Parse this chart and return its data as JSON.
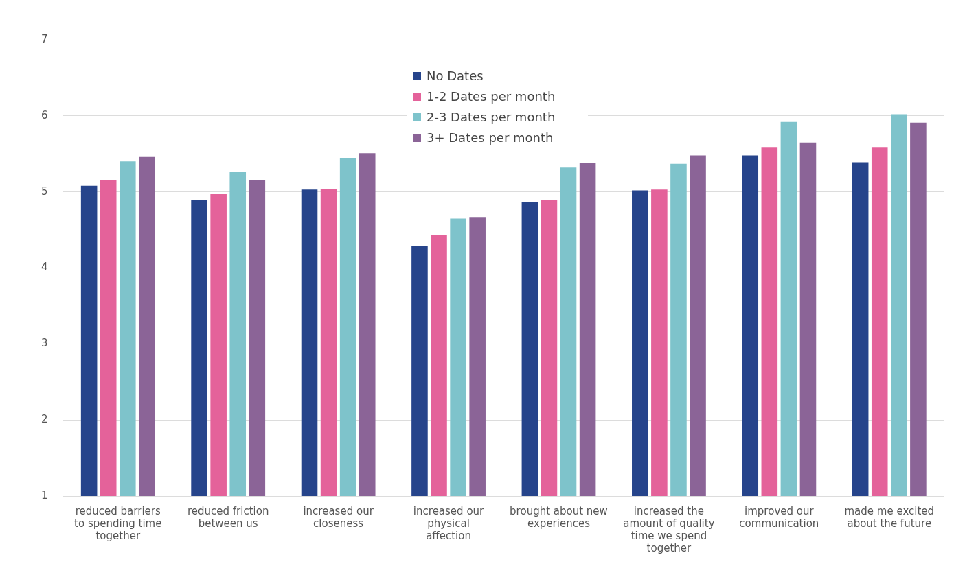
{
  "chart_data": {
    "type": "bar",
    "categories": [
      "reduced barriers to spending time together",
      "reduced friction between us",
      "increased our closeness",
      "increased our physical affection",
      "brought about new experiences",
      "increased the amount of quality time we spend together",
      "improved our communication",
      "made me excited about the future"
    ],
    "series": [
      {
        "name": "No Dates",
        "color": "#26448b",
        "values": [
          5.08,
          4.89,
          5.03,
          4.29,
          4.87,
          5.02,
          5.48,
          5.39
        ]
      },
      {
        "name": "1-2 Dates per month",
        "color": "#e4629a",
        "values": [
          5.15,
          4.97,
          5.04,
          4.43,
          4.89,
          5.03,
          5.59,
          5.59
        ]
      },
      {
        "name": "2-3 Dates per month",
        "color": "#7ec3cb",
        "values": [
          5.4,
          5.26,
          5.44,
          4.65,
          5.32,
          5.37,
          5.92,
          6.02
        ]
      },
      {
        "name": "3+ Dates per month",
        "color": "#8b6497",
        "values": [
          5.46,
          5.15,
          5.51,
          4.66,
          5.38,
          5.48,
          5.65,
          5.91
        ]
      }
    ],
    "ylim": [
      1,
      7
    ],
    "yticks": [
      1,
      2,
      3,
      4,
      5,
      6,
      7
    ],
    "grid": "y",
    "legend": "top"
  }
}
